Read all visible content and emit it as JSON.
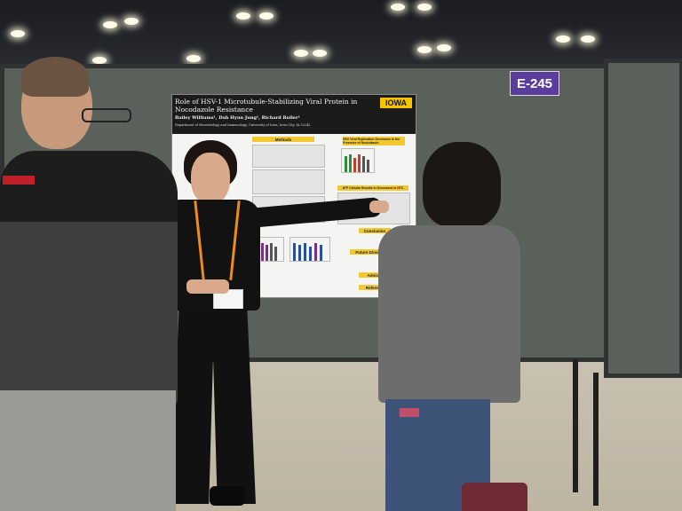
{
  "booth": {
    "sign_text": "E-245"
  },
  "poster": {
    "title": "Role of HSV-1 Microtubule-Stabilizing Viral Protein in Nocodazole Resistance",
    "authors": "Bailey Williams¹, Dah Hyun Jung¹, Richard Roller¹",
    "department": "Department of Microbiology and Immunology, University of Iowa, Iowa City, IA 52242",
    "logo_text": "IOWA",
    "sections": {
      "methods": "Methods",
      "results_1": "HSV Viral Replication Decreases in the Presence of Nocodazole",
      "results_2": "ATP Cellular Results in Decreased in HTC",
      "conclusion": "Conclusion",
      "future": "Future Directions",
      "advisor": "Advisor",
      "references": "References"
    }
  },
  "colors": {
    "poster_header": "#1b1b1b",
    "section_header": "#f2c830",
    "sign_background": "#5b3d9e",
    "board": "#59615a",
    "lanyard": "#f08a1c"
  }
}
